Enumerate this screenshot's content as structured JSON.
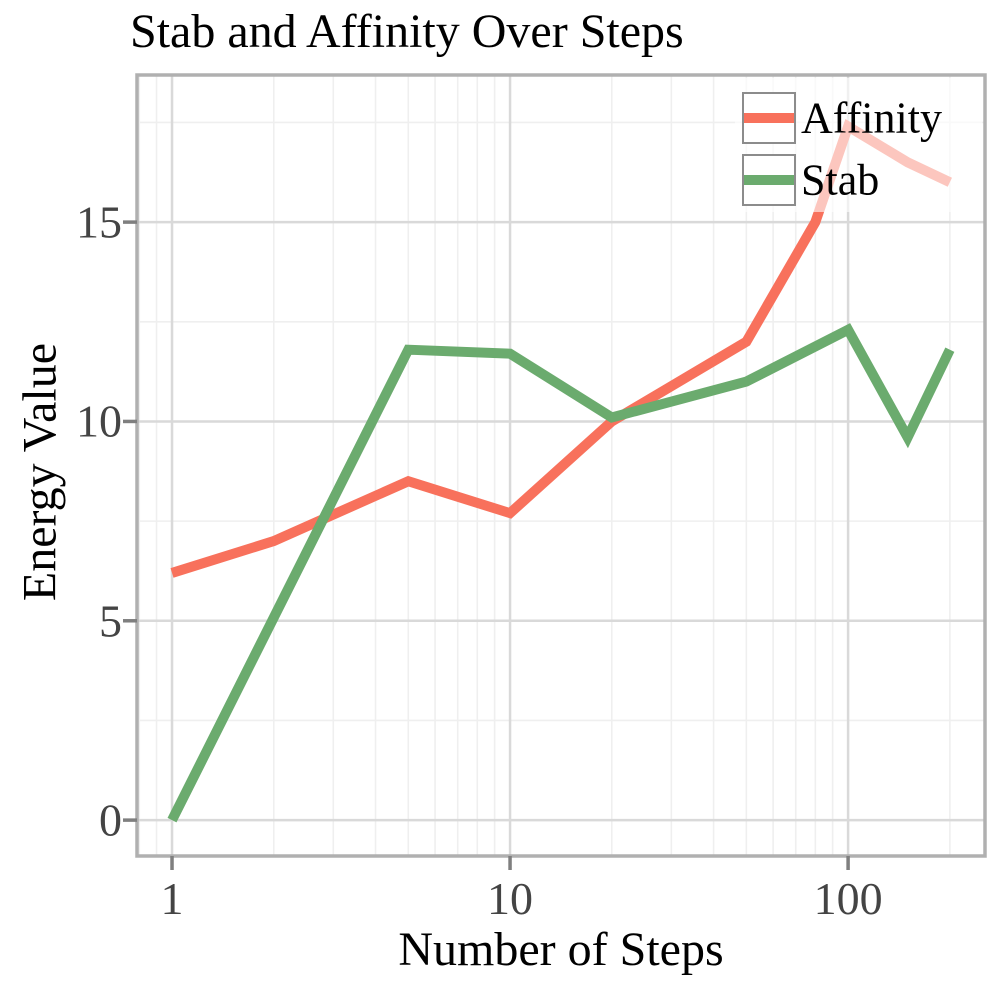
{
  "chart_data": {
    "type": "line",
    "title": "Stab and Affinity Over Steps",
    "xlabel": "Number of Steps",
    "ylabel": "Energy Value",
    "x_scale": "log10",
    "grid": true,
    "legend_position": "top-right-inside",
    "x_ticks": [
      1,
      10,
      100
    ],
    "x_tick_labels": [
      "1",
      "10",
      "100"
    ],
    "x_minor_gridlines": [
      0.8,
      0.9,
      2,
      3,
      4,
      5,
      6,
      7,
      8,
      9,
      20,
      30,
      40,
      50,
      60,
      70,
      80,
      90,
      200
    ],
    "y_ticks": [
      0,
      5,
      10,
      15
    ],
    "y_tick_labels": [
      "0",
      "5",
      "10",
      "15"
    ],
    "y_minor_gridlines": [
      2.5,
      7.5,
      12.5,
      17.5
    ],
    "x_log_range": [
      -0.1036,
      2.405
    ],
    "y_range": [
      -0.9,
      18.69
    ],
    "series": [
      {
        "name": "Affinity",
        "color": "#F8715C",
        "x": [
          1,
          2,
          5,
          10,
          20,
          50,
          80,
          100,
          150,
          200
        ],
        "y": [
          6.2,
          7.0,
          8.5,
          7.7,
          10.0,
          12.0,
          15.0,
          17.4,
          16.5,
          16.0
        ]
      },
      {
        "name": "Stab",
        "color": "#6BAB6E",
        "x": [
          1,
          5,
          10,
          20,
          50,
          100,
          150,
          200
        ],
        "y": [
          0.0,
          11.8,
          11.7,
          10.1,
          11.0,
          12.3,
          9.6,
          11.8
        ]
      }
    ],
    "style_colors": {
      "major_grid": "#D9D9D9",
      "minor_grid": "#EFEFEF",
      "panel_border": "#B0B0B0",
      "tick_mark": "#7F7F7F",
      "tick_label": "#444444"
    }
  }
}
